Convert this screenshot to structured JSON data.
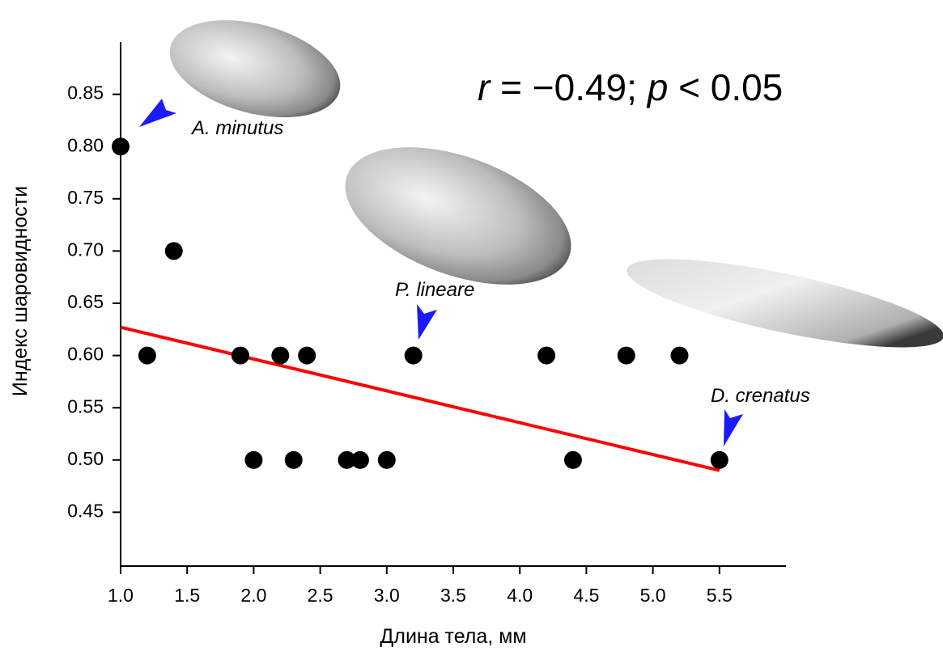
{
  "chart_data": {
    "type": "scatter",
    "x_label": "Длина тела, мм",
    "y_label": "Индекс шаровидности",
    "xlim": [
      1.0,
      6.0
    ],
    "ylim": [
      0.4,
      0.9
    ],
    "xticks": [
      {
        "value": 1.0,
        "label": "1.0"
      },
      1.5,
      {
        "value": 2.0,
        "label": "2.0"
      },
      2.5,
      {
        "value": 3.0,
        "label": "3.0"
      },
      3.5,
      {
        "value": 4.0,
        "label": "4.0"
      },
      4.5,
      {
        "value": 5.0,
        "label": "5.0"
      },
      5.5
    ],
    "yticks": [
      0.45,
      {
        "value": 0.5,
        "label": "0.50"
      },
      0.55,
      {
        "value": 0.6,
        "label": "0.60"
      },
      0.65,
      {
        "value": 0.7,
        "label": "0.70"
      },
      0.75,
      {
        "value": 0.8,
        "label": "0.80"
      },
      0.85
    ],
    "x": [
      1.0,
      1.2,
      1.4,
      1.9,
      2.0,
      2.2,
      2.3,
      2.4,
      2.7,
      2.8,
      3.0,
      3.2,
      4.2,
      4.4,
      4.8,
      5.2,
      5.5
    ],
    "values": [
      0.8,
      0.6,
      0.7,
      0.6,
      0.5,
      0.6,
      0.5,
      0.6,
      0.5,
      0.5,
      0.5,
      0.6,
      0.6,
      0.5,
      0.6,
      0.6,
      0.5
    ],
    "color": "#000000",
    "fit": {
      "x": [
        1.0,
        5.5
      ],
      "values": [
        0.627,
        0.49
      ],
      "color": "#ff0000"
    },
    "annotations": {
      "stat": [
        "r",
        " = −0.49; ",
        "p",
        " < 0.05"
      ],
      "species": [
        "A. minutus",
        "P. lineare",
        "D. crenatus"
      ]
    }
  }
}
